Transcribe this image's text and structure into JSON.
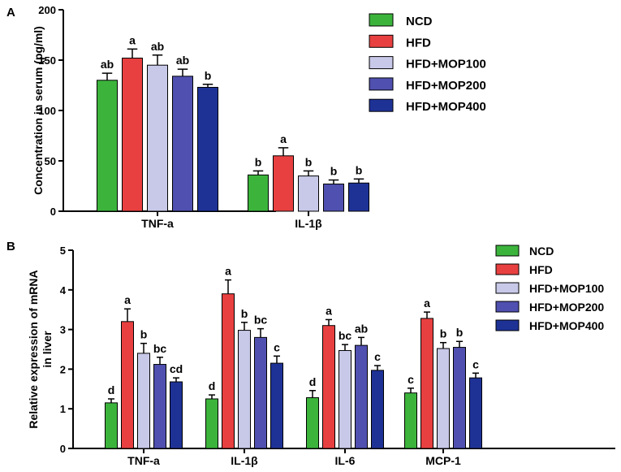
{
  "chart_data": [
    {
      "panel": "A",
      "type": "bar",
      "ylabel": "Concentration in serum (pg/ml)",
      "xlabel": "",
      "ylim": [
        0,
        200
      ],
      "yticks": [
        0,
        50,
        100,
        150,
        200
      ],
      "categories": [
        "TNF-a",
        "IL-1β"
      ],
      "series": [
        {
          "name": "NCD",
          "color": "#3cb43c",
          "values": [
            130,
            36
          ],
          "errors": [
            7,
            4
          ],
          "labels": [
            "ab",
            "b"
          ]
        },
        {
          "name": "HFD",
          "color": "#e84040",
          "values": [
            152,
            55
          ],
          "errors": [
            9,
            8
          ],
          "labels": [
            "a",
            "a"
          ]
        },
        {
          "name": "HFD+MOP100",
          "color": "#c8c8e8",
          "values": [
            145,
            35
          ],
          "errors": [
            10,
            5
          ],
          "labels": [
            "ab",
            "b"
          ]
        },
        {
          "name": "HFD+MOP200",
          "color": "#5050b0",
          "values": [
            134,
            27
          ],
          "errors": [
            7,
            4
          ],
          "labels": [
            "ab",
            "b"
          ]
        },
        {
          "name": "HFD+MOP400",
          "color": "#1e3296",
          "values": [
            123,
            28
          ],
          "errors": [
            3,
            4
          ],
          "labels": [
            "b",
            "b"
          ]
        }
      ],
      "legend": "right"
    },
    {
      "panel": "B",
      "type": "bar",
      "ylabel_lines": [
        "Relative expression of mRNA",
        "in liver"
      ],
      "xlabel": "",
      "ylim": [
        0,
        5
      ],
      "yticks": [
        0,
        1,
        2,
        3,
        4,
        5
      ],
      "categories": [
        "TNF-a",
        "IL-1β",
        "IL-6",
        "MCP-1"
      ],
      "series": [
        {
          "name": "NCD",
          "color": "#3cb43c",
          "values": [
            1.15,
            1.25,
            1.28,
            1.4
          ],
          "errors": [
            0.1,
            0.1,
            0.18,
            0.12
          ],
          "labels": [
            "d",
            "d",
            "d",
            "c"
          ]
        },
        {
          "name": "HFD",
          "color": "#e84040",
          "values": [
            3.2,
            3.9,
            3.1,
            3.28
          ],
          "errors": [
            0.32,
            0.35,
            0.15,
            0.16
          ],
          "labels": [
            "a",
            "a",
            "a",
            "a"
          ]
        },
        {
          "name": "HFD+MOP100",
          "color": "#c8c8e8",
          "values": [
            2.4,
            2.98,
            2.47,
            2.52
          ],
          "errors": [
            0.25,
            0.2,
            0.15,
            0.15
          ],
          "labels": [
            "b",
            "b",
            "bc",
            "b"
          ]
        },
        {
          "name": "HFD+MOP200",
          "color": "#5050b0",
          "values": [
            2.12,
            2.8,
            2.6,
            2.55
          ],
          "errors": [
            0.18,
            0.22,
            0.2,
            0.15
          ],
          "labels": [
            "bc",
            "bc",
            "ab",
            "b"
          ]
        },
        {
          "name": "HFD+MOP400",
          "color": "#1e3296",
          "values": [
            1.68,
            2.15,
            1.97,
            1.78
          ],
          "errors": [
            0.1,
            0.18,
            0.12,
            0.12
          ],
          "labels": [
            "cd",
            "c",
            "c",
            "c"
          ]
        }
      ],
      "legend": "right"
    }
  ]
}
